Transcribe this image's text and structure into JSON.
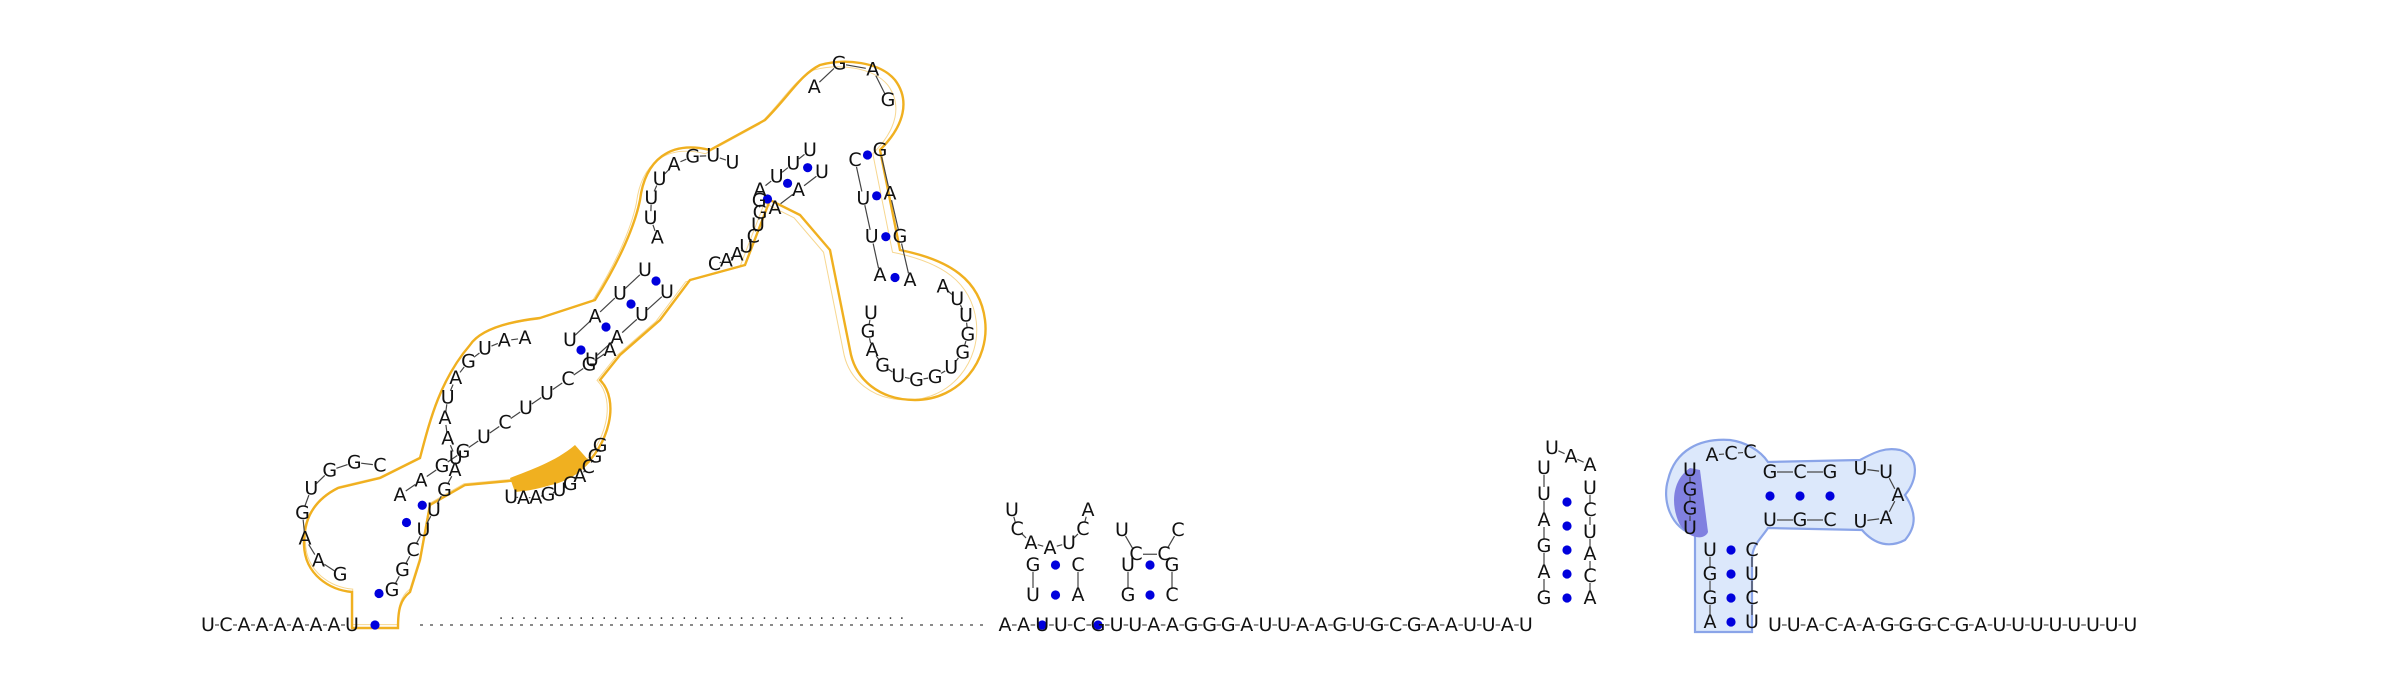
{
  "diagram": {
    "type": "rna-secondary-structure",
    "backbone_strand": {
      "left_5prime": "UCAAAAAAU",
      "gap_label": "....................................",
      "mid": "AAUUCGUUAAGGGAUUAAGUGCGAAUUAU",
      "right_3prime": "UUACAAGGGCGAUUUUUUUU"
    },
    "colors": {
      "backbone": "#444444",
      "base_pair_dot": "#0000dd",
      "yellow_outline": "#f0b020",
      "yellow_highlight": "#f0b020",
      "blue_fill": "#dce8fb",
      "blue_outline": "#8aa4e8",
      "blue_highlight": "#8080e0",
      "text": "#111111"
    },
    "yellow_domain": {
      "arm_a": "GAAGUGGC",
      "loop1": "AAGGUCUUCGA",
      "arm_b": "GGCUUGA",
      "interior": "UAAUAGUAA",
      "stem2_5": "UAUU",
      "interior2": "AUUUAGUU",
      "stem3_5": "AUUU",
      "apical_5": "AGAG",
      "stem4_5": "GAGA",
      "hairpin_top": "AUUGGUGGUGAGU",
      "stem4_3": "CUUA",
      "stem3_3": "AAU",
      "interior2_b": "CAAUCUGG",
      "stem2_3": "UAUU",
      "interior_b": "UAAGUGACGG",
      "highlight_label": "GGU"
    },
    "hairpin_1": {
      "loop": "UCAAUCA",
      "stem": "GUCA"
    },
    "hairpin_2": {
      "loop": "UCCC",
      "stem": "UGGC"
    },
    "hairpin_3": {
      "stem_5": "GAGAUU",
      "loop": "UAA",
      "stem_3": "UCUACA"
    },
    "blue_domain": {
      "stem_5": "AGGU",
      "highlight": "UGGU",
      "upper": "ACC",
      "hp_5": "GCG",
      "hp_loop": "UUAAU",
      "hp_3": "CGU",
      "stem_3": "CUCU"
    }
  }
}
